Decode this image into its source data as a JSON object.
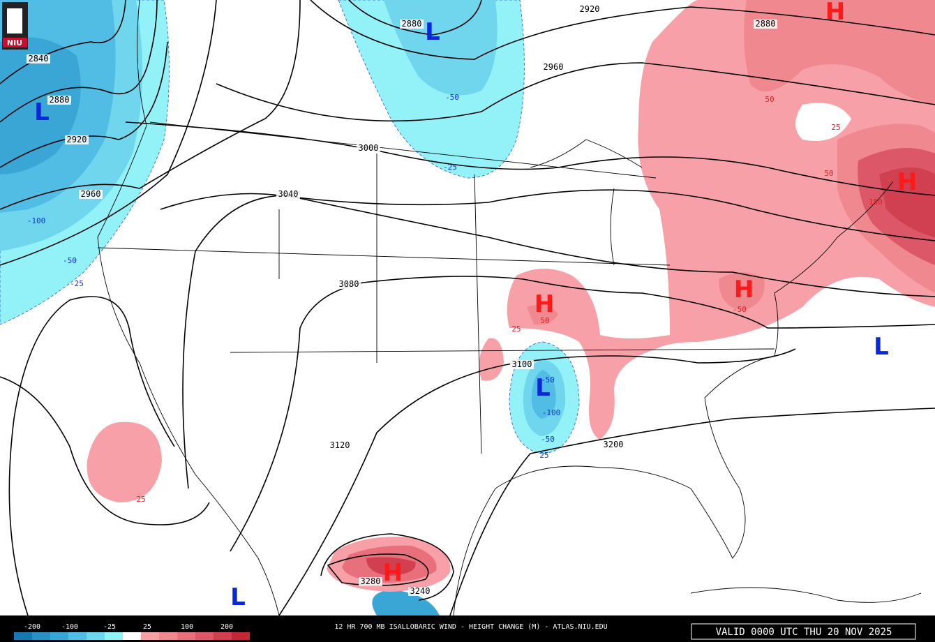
{
  "logo": "NIU",
  "caption": "12 HR 700 MB ISALLOBARIC WIND - HEIGHT CHANGE (M) - ATLAS.NIU.EDU",
  "valid": "VALID 0000 UTC THU 20 NOV 2025",
  "legend": {
    "labels": [
      "-200",
      "-100",
      "-25",
      "25",
      "100",
      "200"
    ],
    "colors": [
      "#1a78b0",
      "#2a8fc4",
      "#3aa6d6",
      "#52bde4",
      "#70d6ee",
      "#93f1f8",
      "#ffffff",
      "#f8a0a8",
      "#f08890",
      "#e8707c",
      "#dc5868",
      "#d04050",
      "#c02838"
    ]
  },
  "centers": [
    {
      "label": "L",
      "color": "#0a28d8"
    },
    {
      "label": "L",
      "color": "#0a28d8"
    },
    {
      "label": "L",
      "color": "#0a28d8"
    },
    {
      "label": "L",
      "color": "#0a28d8"
    },
    {
      "label": "L",
      "color": "#0a28d8"
    },
    {
      "label": "H",
      "color": "#ff1a1a"
    },
    {
      "label": "H",
      "color": "#ff1a1a"
    },
    {
      "label": "H",
      "color": "#ff1a1a"
    },
    {
      "label": "H",
      "color": "#ff1a1a"
    },
    {
      "label": "H",
      "color": "#ff1a1a"
    }
  ],
  "contour_labels": [
    "2840",
    "2880",
    "2920",
    "2960",
    "2880",
    "2920",
    "2960",
    "2880",
    "3000",
    "3040",
    "3080",
    "3100",
    "3120",
    "3200",
    "3280",
    "3240"
  ],
  "change_labels": [
    {
      "text": "-100",
      "color": "#1030d0"
    },
    {
      "text": "-50",
      "color": "#1030d0"
    },
    {
      "text": "-25",
      "color": "#1030d0"
    },
    {
      "text": "-50",
      "color": "#1030d0"
    },
    {
      "text": "-25",
      "color": "#1030d0"
    },
    {
      "text": "-50",
      "color": "#1030d0"
    },
    {
      "text": "-100",
      "color": "#1030d0"
    },
    {
      "text": "-50",
      "color": "#1030d0"
    },
    {
      "text": "25",
      "color": "#1030d0"
    },
    {
      "text": "50",
      "color": "#e02020"
    },
    {
      "text": "25",
      "color": "#e02020"
    },
    {
      "text": "50",
      "color": "#e02020"
    },
    {
      "text": "150",
      "color": "#e02020"
    },
    {
      "text": "50",
      "color": "#e02020"
    },
    {
      "text": "25",
      "color": "#e02020"
    },
    {
      "text": "-50",
      "color": "#e02020"
    },
    {
      "text": "25",
      "color": "#e02020"
    }
  ]
}
